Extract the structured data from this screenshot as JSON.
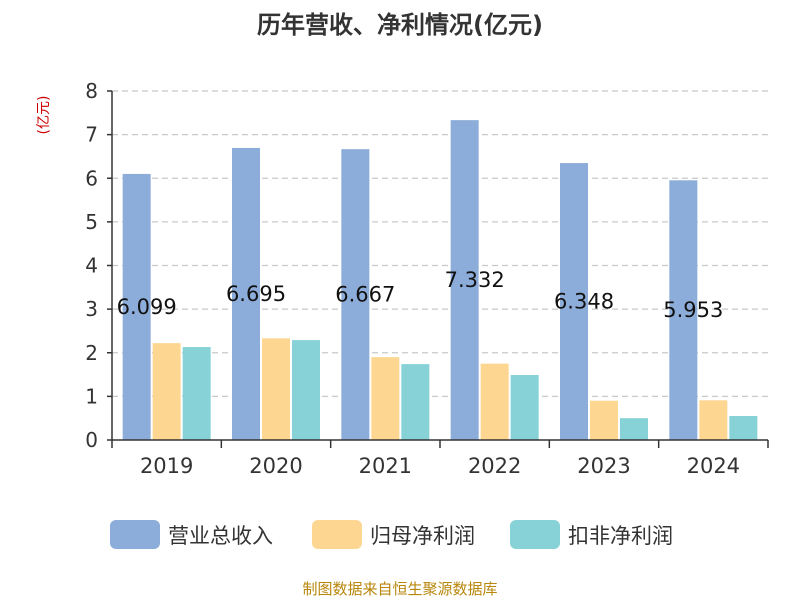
{
  "chart_data": {
    "type": "bar",
    "title": "历年营收、净利情况(亿元)",
    "unit_label": "(亿元)",
    "categories": [
      "2019",
      "2020",
      "2021",
      "2022",
      "2023",
      "2024"
    ],
    "series": [
      {
        "name": "营业总收入",
        "color": "#8cacd9",
        "values": [
          6.099,
          6.695,
          6.667,
          7.332,
          6.348,
          5.953
        ],
        "labels": [
          "6.099",
          "6.695",
          "6.667",
          "7.332",
          "6.348",
          "5.953"
        ]
      },
      {
        "name": "归母净利润",
        "color": "#fdd692",
        "values": [
          2.22,
          2.33,
          1.9,
          1.75,
          0.9,
          0.91
        ]
      },
      {
        "name": "扣非净利润",
        "color": "#86d2d6",
        "values": [
          2.13,
          2.29,
          1.74,
          1.49,
          0.5,
          0.55
        ]
      }
    ],
    "yticks": [
      "0",
      "1",
      "2",
      "3",
      "4",
      "5",
      "6",
      "7",
      "8"
    ],
    "ylim": [
      0,
      8
    ],
    "grid": true,
    "legend": "bottom"
  },
  "source": "制图数据来自恒生聚源数据库"
}
